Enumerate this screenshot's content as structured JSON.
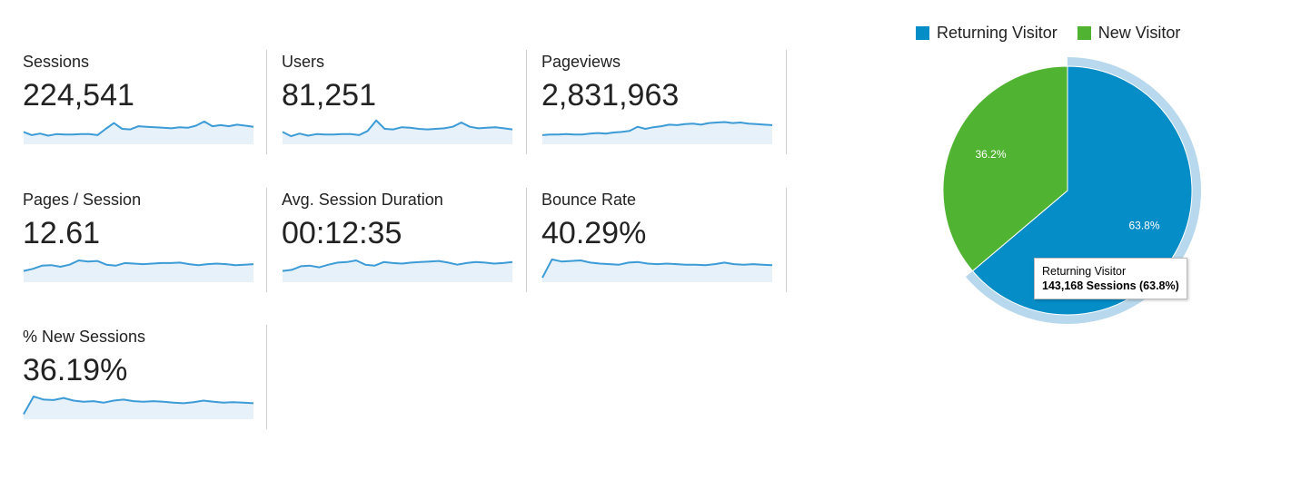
{
  "colors": {
    "spark_line": "#3d9bd6",
    "spark_fill": "#e6f1fa",
    "returning": "#058dc7",
    "new": "#50b432",
    "highlight": "#b8d9ed"
  },
  "metrics": [
    {
      "label": "Sessions",
      "value": "224,541",
      "trend": [
        20,
        14,
        17,
        13,
        16,
        15,
        15,
        16,
        16,
        14,
        26,
        37,
        26,
        25,
        31,
        30,
        29,
        28,
        27,
        29,
        28,
        32,
        40,
        31,
        33,
        31,
        34,
        32,
        30
      ]
    },
    {
      "label": "Users",
      "value": "81,251",
      "trend": [
        20,
        12,
        17,
        13,
        16,
        15,
        15,
        16,
        16,
        14,
        22,
        42,
        26,
        25,
        29,
        28,
        26,
        25,
        26,
        27,
        30,
        38,
        30,
        27,
        28,
        29,
        27,
        25
      ]
    },
    {
      "label": "Pageviews",
      "value": "2,831,963",
      "trend": [
        14,
        15,
        15,
        16,
        15,
        15,
        17,
        18,
        17,
        19,
        20,
        22,
        30,
        26,
        29,
        31,
        34,
        33,
        35,
        36,
        34,
        37,
        38,
        39,
        37,
        38,
        36,
        35,
        34,
        33
      ]
    },
    {
      "label": "Pages / Session",
      "value": "12.61",
      "trend": [
        18,
        22,
        28,
        29,
        26,
        30,
        38,
        36,
        37,
        30,
        28,
        33,
        32,
        31,
        32,
        33,
        33,
        34,
        31,
        29,
        31,
        32,
        31,
        29,
        30,
        31
      ]
    },
    {
      "label": "Avg. Session Duration",
      "value": "00:12:35",
      "trend": [
        18,
        20,
        27,
        28,
        25,
        30,
        34,
        35,
        38,
        30,
        28,
        35,
        33,
        32,
        34,
        35,
        36,
        37,
        34,
        30,
        33,
        35,
        34,
        32,
        33,
        35
      ]
    },
    {
      "label": "Bounce Rate",
      "value": "40.29%",
      "trend": [
        5,
        40,
        36,
        37,
        38,
        34,
        32,
        31,
        30,
        34,
        35,
        32,
        31,
        32,
        31,
        30,
        30,
        29,
        31,
        34,
        31,
        30,
        31,
        30,
        29
      ]
    },
    {
      "label": "% New Sessions",
      "value": "36.19%",
      "trend": [
        6,
        40,
        34,
        33,
        37,
        32,
        30,
        31,
        28,
        32,
        34,
        31,
        30,
        31,
        30,
        28,
        27,
        29,
        32,
        30,
        28,
        29,
        28,
        27
      ]
    }
  ],
  "legend": [
    {
      "label": "Returning Visitor",
      "color": "#058dc7"
    },
    {
      "label": "New Visitor",
      "color": "#50b432"
    }
  ],
  "chart_data": {
    "type": "pie",
    "categories": [
      "Returning Visitor",
      "New Visitor"
    ],
    "values": [
      63.8,
      36.2
    ],
    "slice_labels": [
      "63.8%",
      "36.2%"
    ],
    "colors": [
      "#058dc7",
      "#50b432"
    ],
    "legend_position": "top",
    "highlighted": "Returning Visitor"
  },
  "tooltip": {
    "line1": "Returning Visitor",
    "line2": "143,168 Sessions (63.8%)"
  }
}
